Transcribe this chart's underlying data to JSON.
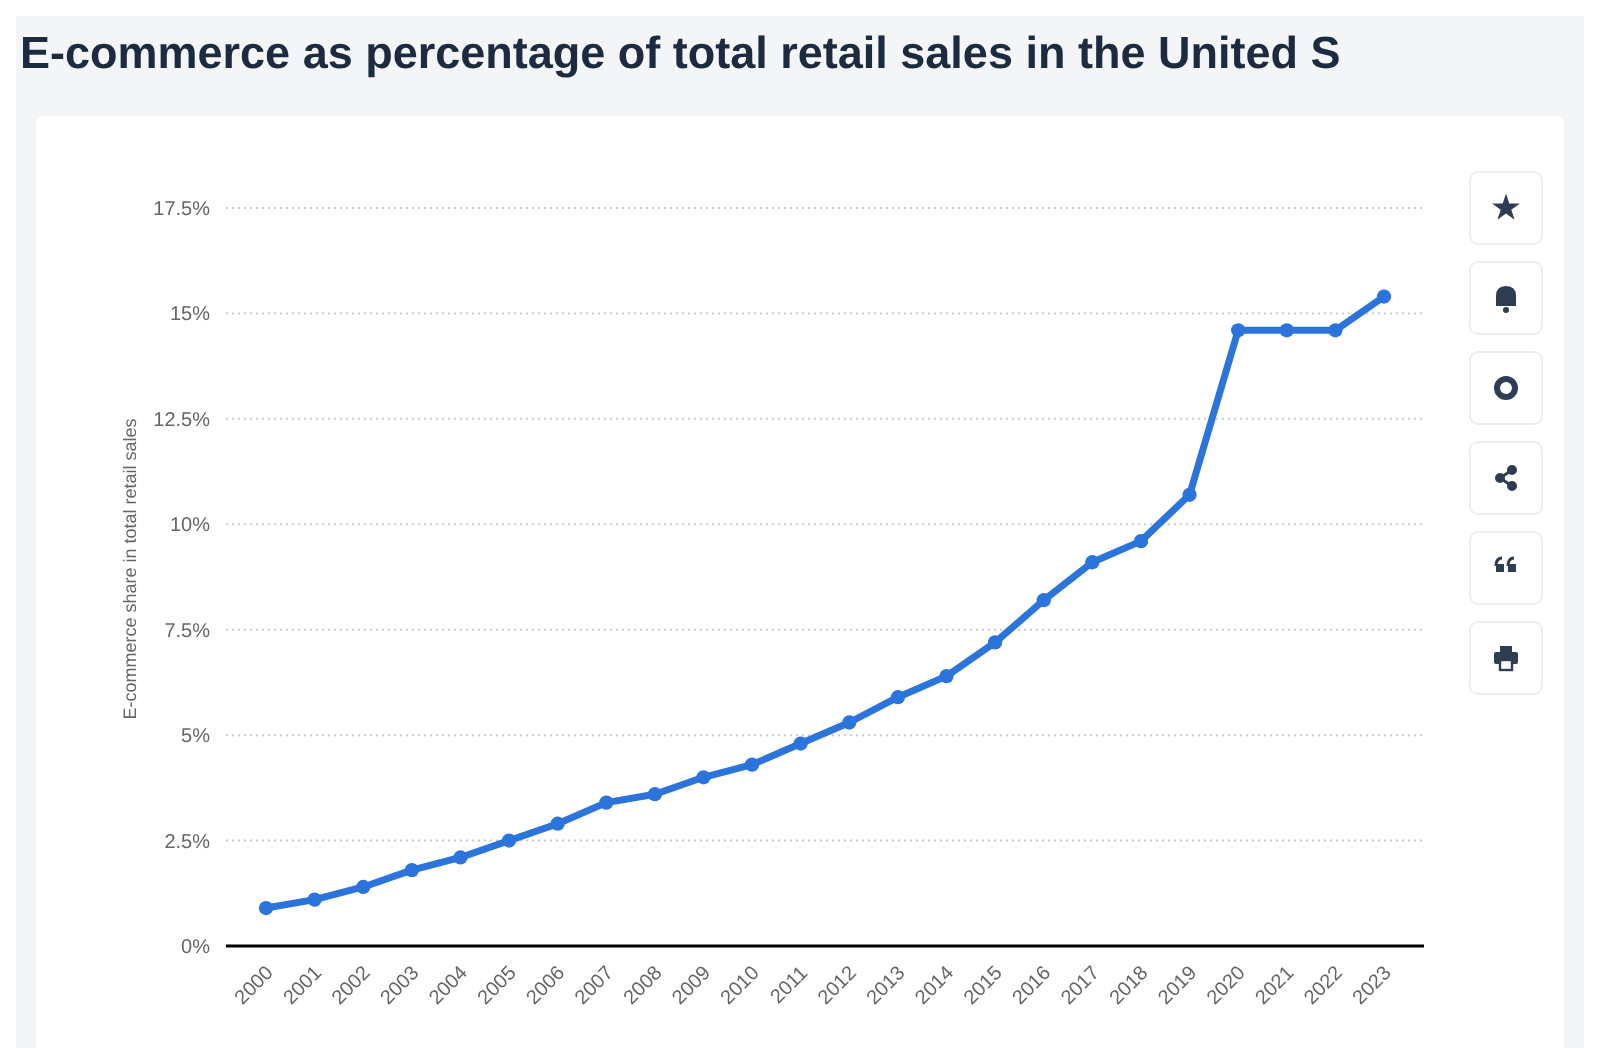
{
  "chart_data": {
    "type": "line",
    "title": "E-commerce as percentage of total retail sales in the United S",
    "ylabel": "E-commerce share in total retail sales",
    "categories": [
      "2000",
      "2001",
      "2002",
      "2003",
      "2004",
      "2005",
      "2006",
      "2007",
      "2008",
      "2009",
      "2010",
      "2011",
      "2012",
      "2013",
      "2014",
      "2015",
      "2016",
      "2017",
      "2018",
      "2019",
      "2020",
      "2021",
      "2022",
      "2023"
    ],
    "series": [
      {
        "color": "#2a74db",
        "values": [
          0.9,
          1.1,
          1.4,
          1.8,
          2.1,
          2.5,
          2.9,
          3.4,
          3.6,
          4.0,
          4.3,
          4.8,
          5.3,
          5.9,
          6.4,
          7.2,
          8.2,
          9.1,
          9.6,
          10.7,
          14.6,
          14.6,
          14.6,
          15.4
        ]
      }
    ],
    "ylim": [
      0,
      17.5
    ],
    "yticks": [
      {
        "value": 0,
        "label": "0%"
      },
      {
        "value": 2.5,
        "label": "2.5%"
      },
      {
        "value": 5,
        "label": "5%"
      },
      {
        "value": 7.5,
        "label": "7.5%"
      },
      {
        "value": 10,
        "label": "10%"
      },
      {
        "value": 12.5,
        "label": "12.5%"
      },
      {
        "value": 15,
        "label": "15%"
      },
      {
        "value": 17.5,
        "label": "17.5%"
      }
    ],
    "grid": "y",
    "marker": "circle",
    "line_style": "solid"
  }
}
